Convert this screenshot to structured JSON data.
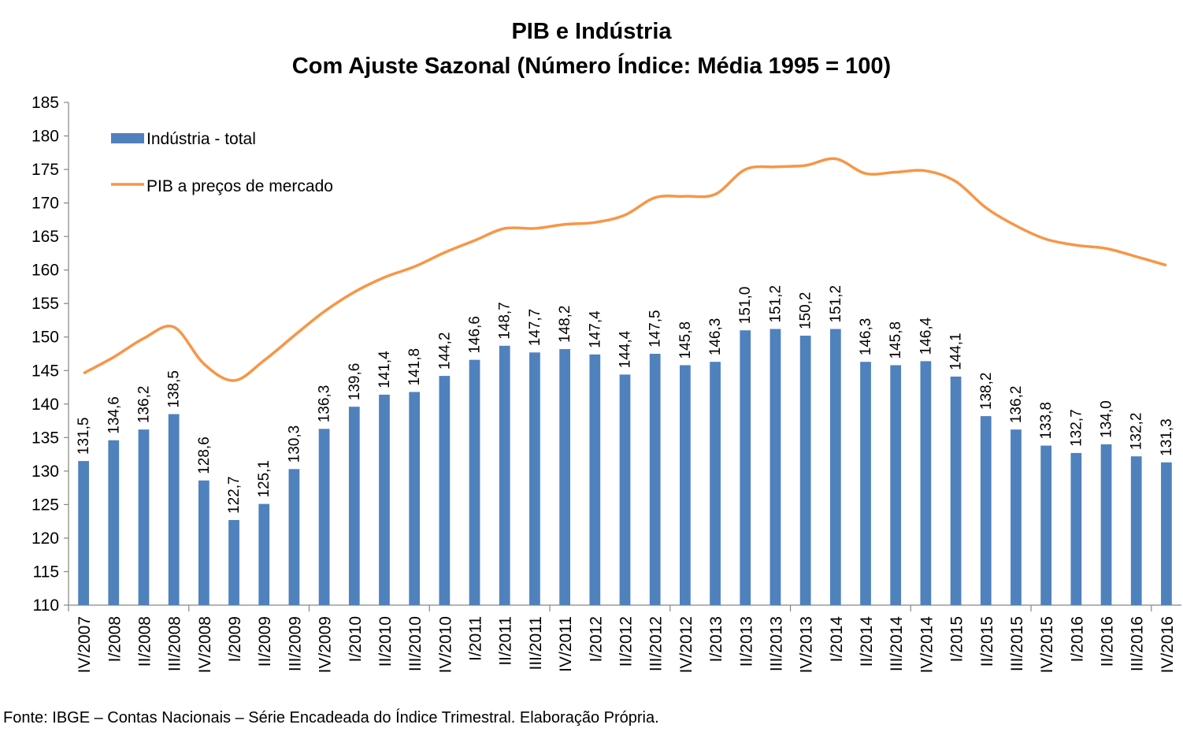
{
  "chart_data": {
    "type": "bar+line",
    "title": "PIB e Indústria",
    "subtitle": "Com Ajuste Sazonal (Número Índice: Média 1995 = 100)",
    "source": "Fonte: IBGE – Contas Nacionais – Série Encadeada do Índice Trimestral. Elaboração Própria.",
    "ylim": [
      110,
      185
    ],
    "yticks": [
      "110",
      "115",
      "120",
      "125",
      "130",
      "135",
      "140",
      "145",
      "150",
      "155",
      "160",
      "165",
      "170",
      "175",
      "180",
      "185"
    ],
    "grid": false,
    "legend_position": "top-left",
    "categories": [
      "IV/2007",
      "I/2008",
      "II/2008",
      "III/2008",
      "IV/2008",
      "I/2009",
      "II/2009",
      "III/2009",
      "IV/2009",
      "I/2010",
      "II/2010",
      "III/2010",
      "IV/2010",
      "I/2011",
      "II/2011",
      "III/2011",
      "IV/2011",
      "I/2012",
      "II/2012",
      "III/2012",
      "IV/2012",
      "I/2013",
      "II/2013",
      "III/2013",
      "IV/2013",
      "I/2014",
      "II/2014",
      "III/2014",
      "IV/2014",
      "I/2015",
      "II/2015",
      "III/2015",
      "IV/2015",
      "I/2016",
      "II/2016",
      "III/2016",
      "IV/2016"
    ],
    "series": [
      {
        "name": "Indústria - total",
        "kind": "bar",
        "color": "#4f81bd",
        "values": [
          131.5,
          134.6,
          136.2,
          138.5,
          128.6,
          122.7,
          125.1,
          130.3,
          136.3,
          139.6,
          141.4,
          141.8,
          144.2,
          146.6,
          148.7,
          147.7,
          148.2,
          147.4,
          144.4,
          147.5,
          145.8,
          146.3,
          151.0,
          151.2,
          150.2,
          151.2,
          146.3,
          145.8,
          146.4,
          144.1,
          138.2,
          136.2,
          133.8,
          132.7,
          134.0,
          132.2,
          131.3
        ],
        "labels": [
          "131,5",
          "134,6",
          "136,2",
          "138,5",
          "128,6",
          "122,7",
          "125,1",
          "130,3",
          "136,3",
          "139,6",
          "141,4",
          "141,8",
          "144,2",
          "146,6",
          "148,7",
          "147,7",
          "148,2",
          "147,4",
          "144,4",
          "147,5",
          "145,8",
          "146,3",
          "151,0",
          "151,2",
          "150,2",
          "151,2",
          "146,3",
          "145,8",
          "146,4",
          "144,1",
          "138,2",
          "136,2",
          "133,8",
          "132,7",
          "134,0",
          "132,2",
          "131,3"
        ]
      },
      {
        "name": "PIB a preços de mercado",
        "kind": "line",
        "color": "#f79646",
        "values": [
          144.6,
          147.0,
          149.8,
          151.5,
          146.0,
          143.5,
          146.5,
          150.2,
          153.8,
          156.7,
          158.9,
          160.5,
          162.6,
          164.4,
          166.2,
          166.2,
          166.8,
          167.1,
          168.2,
          170.8,
          171.0,
          171.3,
          175.0,
          175.4,
          175.6,
          176.6,
          174.4,
          174.6,
          174.8,
          173.2,
          169.3,
          166.6,
          164.6,
          163.7,
          163.2,
          162.0,
          160.7
        ]
      }
    ]
  }
}
